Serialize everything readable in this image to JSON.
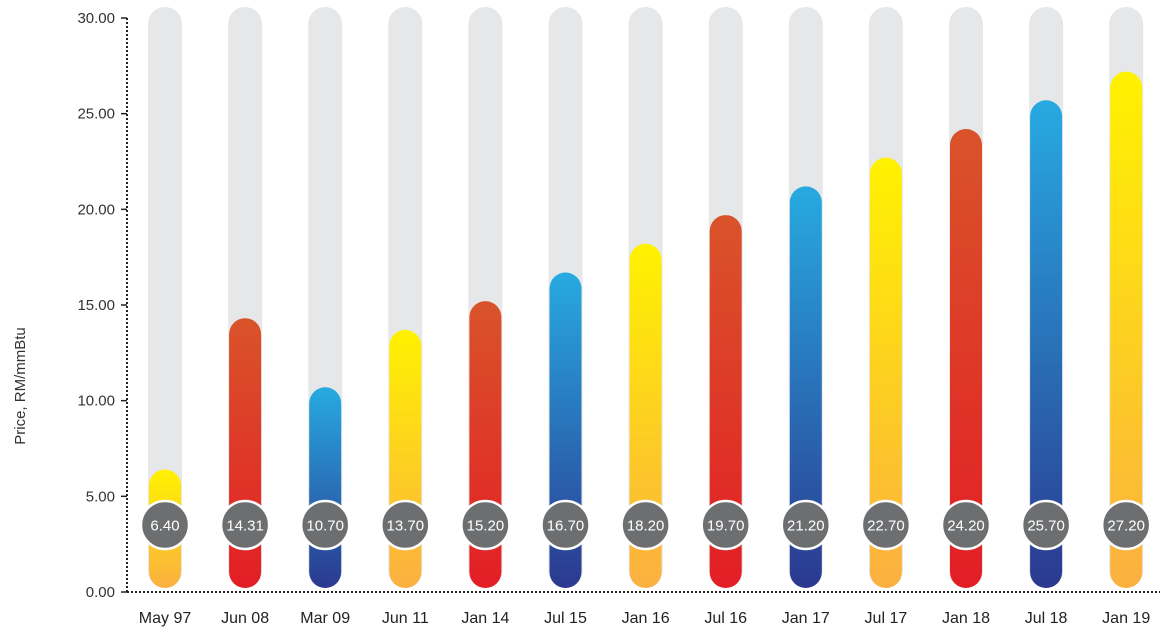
{
  "chart_data": {
    "type": "bar",
    "title": "",
    "xlabel": "",
    "ylabel": "Price, RM/mmBtu",
    "ylim": [
      0,
      30
    ],
    "yticks": [
      "0.00",
      "5.00",
      "10.00",
      "15.00",
      "20.00",
      "25.00",
      "30.00"
    ],
    "categories": [
      "May 97",
      "Jun 08",
      "Mar 09",
      "Jun 11",
      "Jan 14",
      "Jul 15",
      "Jan 16",
      "Jul 16",
      "Jan 17",
      "Jul 17",
      "Jan 18",
      "Jul 18",
      "Jan 19"
    ],
    "values": [
      6.4,
      14.31,
      10.7,
      13.7,
      15.2,
      16.7,
      18.2,
      19.7,
      21.2,
      22.7,
      24.2,
      25.7,
      27.2
    ],
    "value_labels": [
      "6.40",
      "14.31",
      "10.70",
      "13.70",
      "15.20",
      "16.70",
      "18.20",
      "19.70",
      "21.20",
      "22.70",
      "24.20",
      "25.70",
      "27.20"
    ],
    "bar_styles": [
      "yellow",
      "red",
      "blue",
      "yellow",
      "red",
      "blue",
      "yellow",
      "red",
      "blue",
      "yellow",
      "red",
      "blue",
      "yellow"
    ],
    "track_color": "#e6e7e9",
    "badge_color": "#6d6e70",
    "gradients": {
      "yellow": [
        "#fff200",
        "#fbb040"
      ],
      "red": [
        "#d9532a",
        "#e31e25"
      ],
      "blue": [
        "#27aae1",
        "#2b3990"
      ]
    },
    "grid": false,
    "legend": "none"
  }
}
